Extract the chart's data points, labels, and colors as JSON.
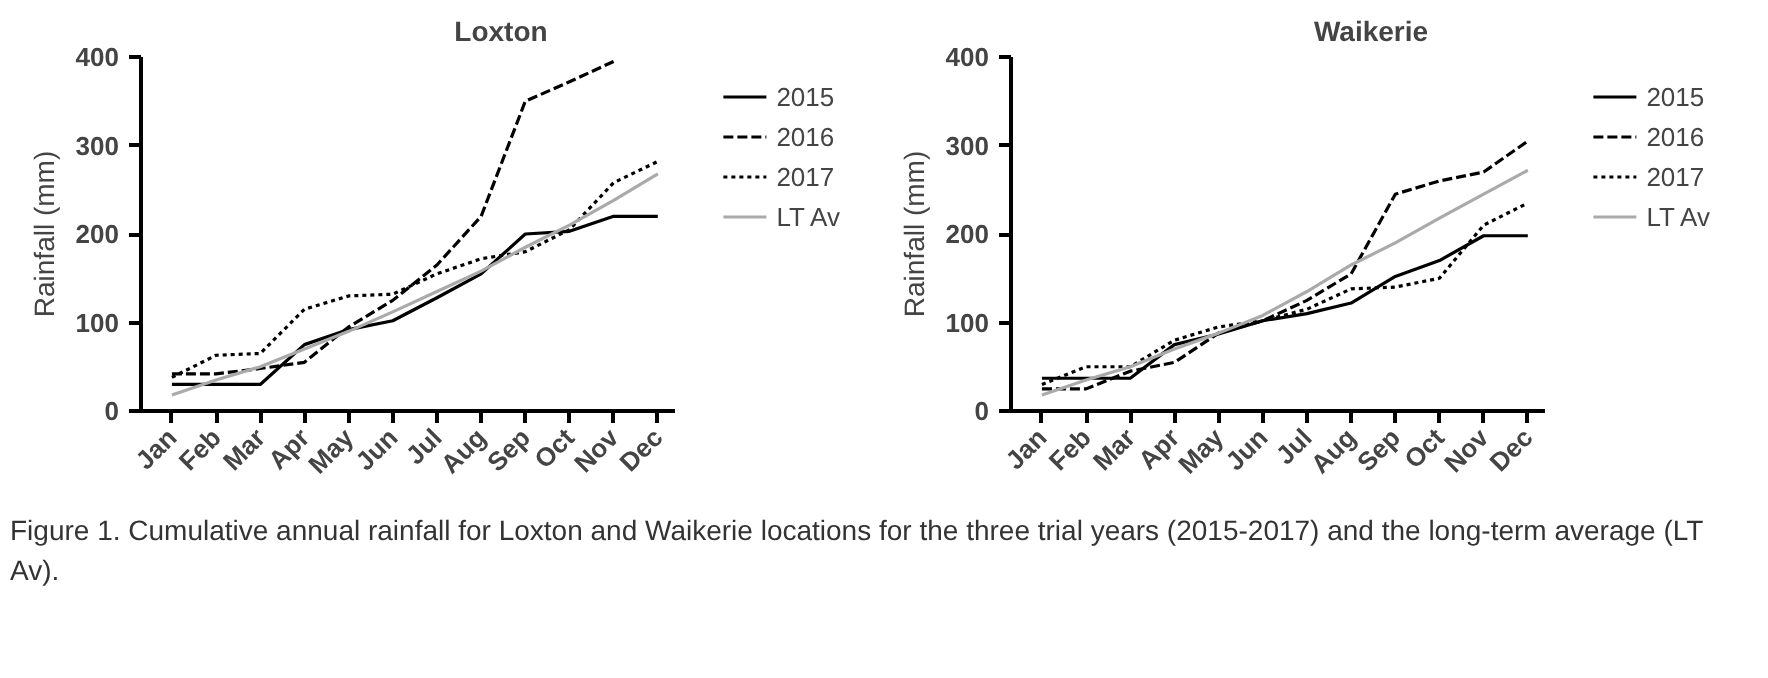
{
  "chart_data": [
    {
      "type": "line",
      "title": "Loxton",
      "ylabel": "Rainfall (mm)",
      "categories": [
        "Jan",
        "Feb",
        "Mar",
        "Apr",
        "May",
        "Jun",
        "Jul",
        "Aug",
        "Sep",
        "Oct",
        "Nov",
        "Dec"
      ],
      "ylim": [
        0,
        400
      ],
      "yticks": [
        0,
        100,
        200,
        300,
        400
      ],
      "grid": false,
      "legend": "right",
      "series": [
        {
          "name": "2015",
          "color": "#000000",
          "line_style": "solid",
          "values": [
            30,
            30,
            30,
            75,
            92,
            102,
            128,
            155,
            200,
            203,
            220,
            220
          ]
        },
        {
          "name": "2016",
          "color": "#000000",
          "line_style": "dashed",
          "values": [
            42,
            42,
            48,
            55,
            95,
            125,
            165,
            220,
            350,
            372,
            395,
            null
          ]
        },
        {
          "name": "2017",
          "color": "#000000",
          "line_style": "dotted",
          "values": [
            38,
            63,
            65,
            115,
            130,
            132,
            155,
            172,
            180,
            205,
            258,
            282
          ]
        },
        {
          "name": "LT Av",
          "color": "#aaaaaa",
          "line_style": "solid",
          "values": [
            18,
            35,
            50,
            70,
            90,
            112,
            135,
            158,
            185,
            210,
            238,
            268
          ]
        }
      ],
      "annotations": [
        "Figure 1. Cumulative annual rainfall for Loxton and Waikerie locations for the three trial years (2015-2017) and the long-term average (LT Av)."
      ]
    },
    {
      "type": "line",
      "title": "Waikerie",
      "ylabel": "Rainfall (mm)",
      "categories": [
        "Jan",
        "Feb",
        "Mar",
        "Apr",
        "May",
        "Jun",
        "Jul",
        "Aug",
        "Sep",
        "Oct",
        "Nov",
        "Dec"
      ],
      "ylim": [
        0,
        400
      ],
      "yticks": [
        0,
        100,
        200,
        300,
        400
      ],
      "grid": false,
      "legend": "right",
      "series": [
        {
          "name": "2015",
          "color": "#000000",
          "line_style": "solid",
          "values": [
            37,
            37,
            37,
            75,
            87,
            102,
            110,
            122,
            152,
            170,
            198,
            198
          ]
        },
        {
          "name": "2016",
          "color": "#000000",
          "line_style": "dashed",
          "values": [
            25,
            25,
            45,
            55,
            88,
            102,
            125,
            155,
            245,
            260,
            270,
            305
          ]
        },
        {
          "name": "2017",
          "color": "#000000",
          "line_style": "dotted",
          "values": [
            30,
            50,
            50,
            80,
            95,
            102,
            115,
            138,
            140,
            150,
            210,
            235
          ]
        },
        {
          "name": "LT Av",
          "color": "#aaaaaa",
          "line_style": "solid",
          "values": [
            18,
            35,
            50,
            70,
            88,
            108,
            135,
            165,
            190,
            218,
            245,
            272
          ]
        }
      ]
    }
  ]
}
